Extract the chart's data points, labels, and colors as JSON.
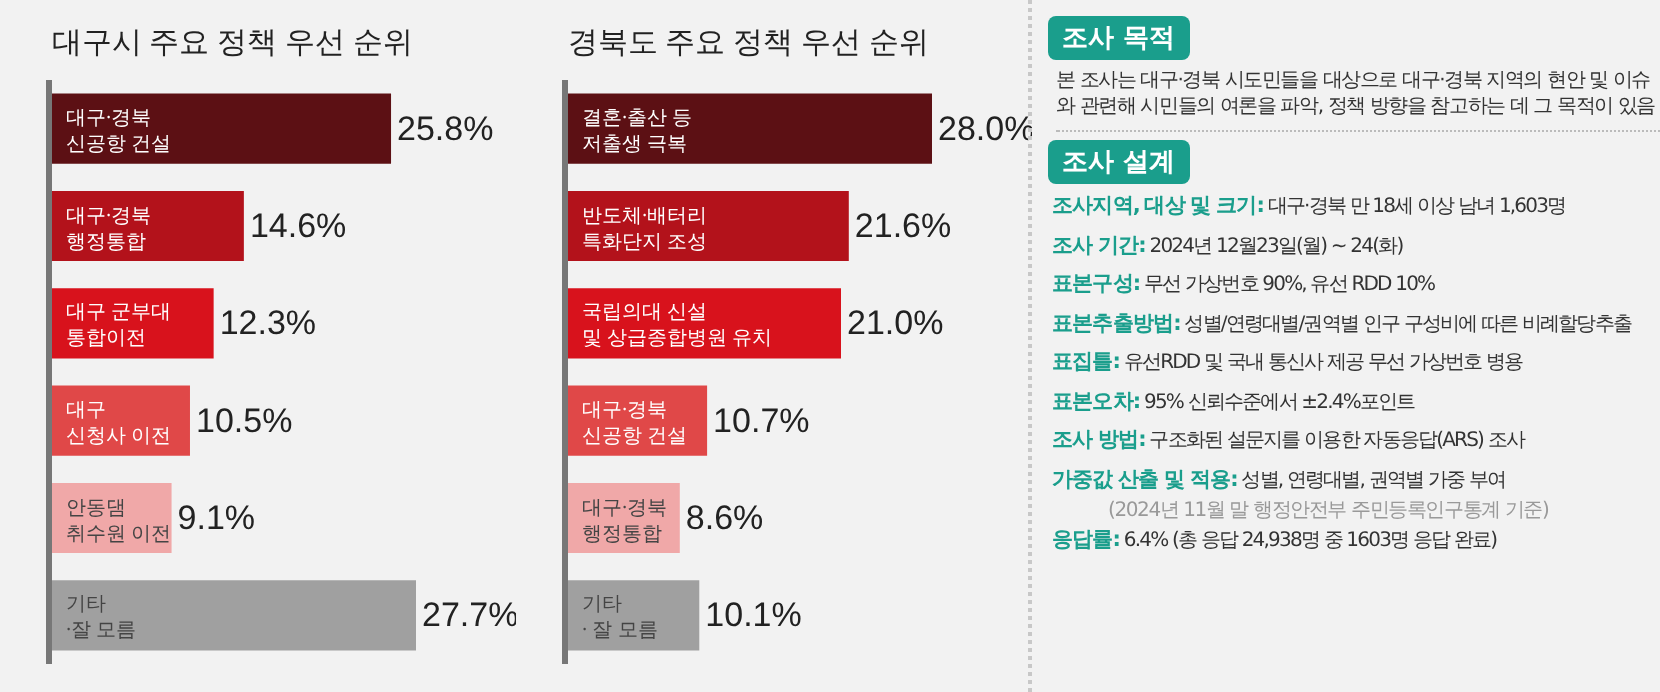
{
  "chart_data": [
    {
      "type": "bar",
      "orientation": "horizontal",
      "title": "대구시 주요 정책 우선 순위",
      "categories": [
        "대구·경북\n신공항 건설",
        "대구·경북\n행정통합",
        "대구 군부대\n통합이전",
        "대구\n신청사 이전",
        "안동댐\n취수원 이전",
        "기타\n·잘 모름"
      ],
      "values": [
        25.8,
        14.6,
        12.3,
        10.5,
        9.1,
        27.7
      ],
      "value_labels": [
        "25.8%",
        "14.6%",
        "12.3%",
        "10.5%",
        "9.1%",
        "27.7%"
      ],
      "colors": [
        "#5c1014",
        "#b3121b",
        "#d8121c",
        "#e04848",
        "#f0a8a8",
        "#a0a0a0"
      ]
    },
    {
      "type": "bar",
      "orientation": "horizontal",
      "title": "경북도 주요 정책 우선 순위",
      "categories": [
        "결혼·출산 등\n저출생 극복",
        "반도체·배터리\n특화단지 조성",
        "국립의대 신설\n및 상급종합병원 유치",
        "대구·경북\n신공항 건설",
        "대구·경북\n행정통합",
        "기타\n· 잘 모름"
      ],
      "values": [
        28.0,
        21.6,
        21.0,
        10.7,
        8.6,
        10.1
      ],
      "value_labels": [
        "28.0%",
        "21.6%",
        "21.0%",
        "10.7%",
        "8.6%",
        "10.1%"
      ],
      "colors": [
        "#5c1014",
        "#b3121b",
        "#d8121c",
        "#e04848",
        "#f0a8a8",
        "#a0a0a0"
      ]
    },
    {
      "type": "other",
      "title": "조사 목적",
      "subtitle": "본 조사는 대구·경북 시도민들을 대상으로 대구·경북 지역의 현안 및 이슈와 관련해 시민들의 여론을 파악, 정책 방향을 참고하는 데 그 목적이 있음",
      "annotations": [
        "조사 설계",
        "조사지역, 대상 및 크기: 대구·경북 만 18세 이상 남녀 1,603명",
        "조사 기간: 2024년 12월23일(월) ~ 24(화)",
        "표본구성: 무선 가상번호 90%, 유선 RDD 10%",
        "표본추출방법: 성별/연령대별/권역별 인구 구성비에 따른 비례할당추출",
        "표집틀: 유선RDD 및 국내 통신사 제공 무선 가상번호 병용",
        "표본오차: 95% 신뢰수준에서 ±2.4%포인트",
        "조사 방법: 구조화된 설문지를 이용한 자동응답(ARS) 조사",
        "가중값 산출 및 적용: 성별, 연령대별, 권역별 가중 부여",
        "(2024년 11월 말 행정안전부 주민등록인구통계 기준)",
        "응답률: 6.4% (총 응답 24,938명 중 1603명 응답 완료)"
      ]
    }
  ]
}
